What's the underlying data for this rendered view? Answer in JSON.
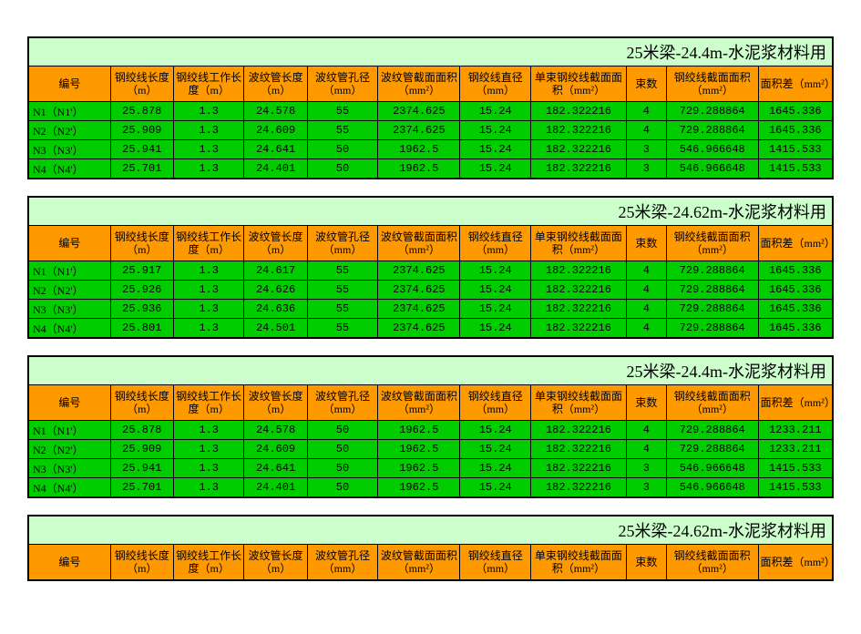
{
  "headers": [
    "编号",
    "钢绞线长度（m）",
    "钢绞线工作长度（m）",
    "波纹管长度（m）",
    "波纹管孔径（mm）",
    "波纹管截面面积（mm²）",
    "钢绞线直径（mm）",
    "单束钢绞线截面面积（mm²）",
    "束数",
    "钢绞线截面面积（mm²）",
    "面积差（mm²）"
  ],
  "tables": [
    {
      "title": "25米梁-24.4m-水泥浆材料用",
      "rows": [
        [
          "N1（N1'）",
          "25.878",
          "1.3",
          "24.578",
          "55",
          "2374.625",
          "15.24",
          "182.322216",
          "4",
          "729.288864",
          "1645.336"
        ],
        [
          "N2（N2'）",
          "25.909",
          "1.3",
          "24.609",
          "55",
          "2374.625",
          "15.24",
          "182.322216",
          "4",
          "729.288864",
          "1645.336"
        ],
        [
          "N3（N3'）",
          "25.941",
          "1.3",
          "24.641",
          "50",
          "1962.5",
          "15.24",
          "182.322216",
          "3",
          "546.966648",
          "1415.533"
        ],
        [
          "N4（N4'）",
          "25.701",
          "1.3",
          "24.401",
          "50",
          "1962.5",
          "15.24",
          "182.322216",
          "3",
          "546.966648",
          "1415.533"
        ]
      ],
      "red_cells": []
    },
    {
      "title": "25米梁-24.62m-水泥浆材料用",
      "rows": [
        [
          "N1（N1'）",
          "25.917",
          "1.3",
          "24.617",
          "55",
          "2374.625",
          "15.24",
          "182.322216",
          "4",
          "729.288864",
          "1645.336"
        ],
        [
          "N2（N2'）",
          "25.926",
          "1.3",
          "24.626",
          "55",
          "2374.625",
          "15.24",
          "182.322216",
          "4",
          "729.288864",
          "1645.336"
        ],
        [
          "N3（N3'）",
          "25.936",
          "1.3",
          "24.636",
          "55",
          "2374.625",
          "15.24",
          "182.322216",
          "4",
          "729.288864",
          "1645.336"
        ],
        [
          "N4（N4'）",
          "25.801",
          "1.3",
          "24.501",
          "55",
          "2374.625",
          "15.24",
          "182.322216",
          "4",
          "729.288864",
          "1645.336"
        ]
      ],
      "red_cells": []
    },
    {
      "title": "25米梁-24.4m-水泥浆材料用",
      "rows": [
        [
          "N1（N1'）",
          "25.878",
          "1.3",
          "24.578",
          "50",
          "1962.5",
          "15.24",
          "182.322216",
          "4",
          "729.288864",
          "1233.211"
        ],
        [
          "N2（N2'）",
          "25.909",
          "1.3",
          "24.609",
          "50",
          "1962.5",
          "15.24",
          "182.322216",
          "4",
          "729.288864",
          "1233.211"
        ],
        [
          "N3（N3'）",
          "25.941",
          "1.3",
          "24.641",
          "50",
          "1962.5",
          "15.24",
          "182.322216",
          "3",
          "546.966648",
          "1415.533"
        ],
        [
          "N4（N4'）",
          "25.701",
          "1.3",
          "24.401",
          "50",
          "1962.5",
          "15.24",
          "182.322216",
          "3",
          "546.966648",
          "1415.533"
        ]
      ],
      "red_cells": [
        [
          0,
          4
        ],
        [
          1,
          4
        ]
      ]
    },
    {
      "title": "25米梁-24.62m-水泥浆材料用",
      "rows": [],
      "red_cells": []
    }
  ]
}
